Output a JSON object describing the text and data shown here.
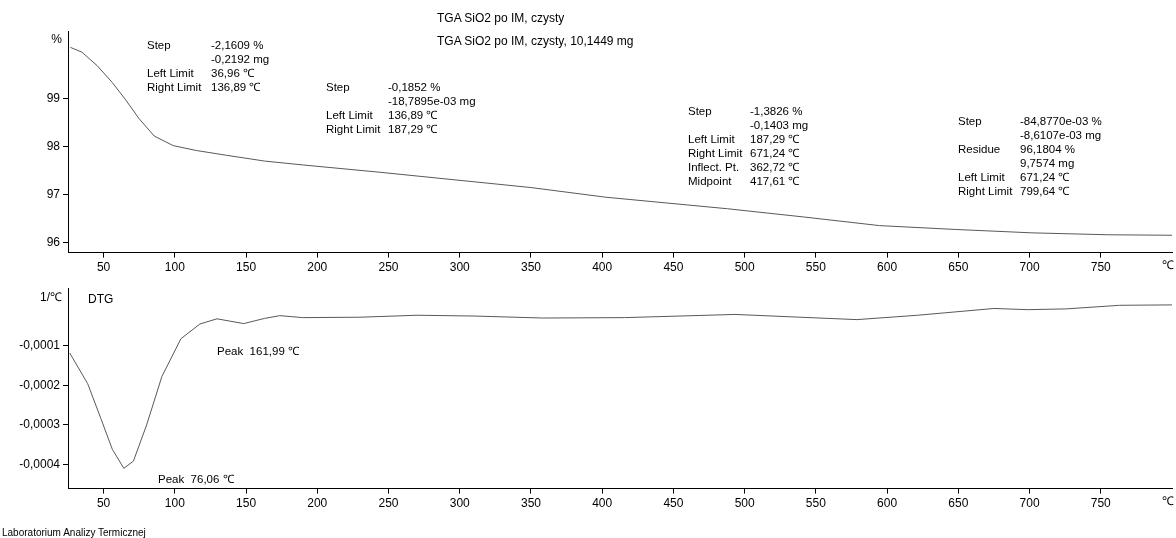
{
  "chart_data": [
    {
      "type": "line",
      "title": "TGA SiO2 po IM, czysty",
      "subtitle": "TGA SiO2 po IM, czysty, 10,1449 mg",
      "xlabel": "℃",
      "ylabel": "%",
      "x": [
        26.7,
        34.8,
        45.5,
        56.1,
        65.5,
        74.9,
        85.5,
        98.9,
        115,
        136.3,
        163,
        189.8,
        243.2,
        296.6,
        350.1,
        402.4,
        488,
        541.3,
        594.7,
        648.2,
        701.6,
        755.2,
        800
      ],
      "series": [
        {
          "color": "#595959",
          "values": [
            100.06,
            99.96,
            99.68,
            99.33,
            98.97,
            98.58,
            98.22,
            98.02,
            97.92,
            97.82,
            97.7,
            97.62,
            97.47,
            97.31,
            97.15,
            96.95,
            96.71,
            96.54,
            96.36,
            96.28,
            96.21,
            96.17,
            96.16
          ]
        }
      ],
      "xlim": [
        25,
        800
      ],
      "xticks": [
        50,
        100,
        150,
        200,
        250,
        300,
        350,
        400,
        450,
        500,
        550,
        600,
        650,
        700,
        750
      ],
      "ylim": [
        95.8,
        100.4
      ],
      "yticks": [
        96,
        97,
        98,
        99
      ],
      "annotations": [
        "Step\t-2,1609 %\n\t-0,2192 mg\nLeft Limit\t36,96 ℃\nRight Limit\t136,89 ℃",
        "Step\t-0,1852 %\n\t-18,7895e-03 mg\nLeft Limit\t136,89 ℃\nRight Limit\t187,29 ℃",
        "Step\t-1,3826 %\n\t-0,1403 mg\nLeft Limit\t187,29 ℃\nRight Limit\t671,24 ℃\nInflect. Pt.\t362,72 ℃\nMidpoint\t417,61 ℃",
        "Step\t-84,8770e-03 %\n\t-8,6107e-03 mg\nResidue\t96,1804 %\n\t9,7574 mg\nLeft Limit\t671,24 ℃\nRight Limit\t799,64 ℃"
      ],
      "grid": false,
      "legend": false
    },
    {
      "type": "line",
      "title": "DTG",
      "xlabel": "℃",
      "ylabel": "1/℃",
      "x": [
        26.2,
        38.8,
        48.1,
        56.1,
        64.2,
        70.9,
        80.2,
        90.9,
        104.3,
        117.6,
        129.6,
        148.3,
        163,
        173.7,
        189.8,
        229.9,
        270,
        310,
        358.2,
        415.8,
        493.2,
        578.8,
        621.5,
        675,
        699,
        725.8,
        763.2,
        800
      ],
      "series": [
        {
          "color": "#595959",
          "values": [
            -0.000119,
            -0.000196,
            -0.000284,
            -0.000361,
            -0.000409,
            -0.000391,
            -0.0003,
            -0.000178,
            -8.3e-05,
            -4.6e-05,
            -3.3e-05,
            -4.5e-05,
            -3.2e-05,
            -2.5e-05,
            -3e-05,
            -2.9e-05,
            -2.4e-05,
            -2.6e-05,
            -3.1e-05,
            -3e-05,
            -2.2e-05,
            -3.5e-05,
            -2.4e-05,
            -7e-06,
            -1e-05,
            -8e-06,
            1e-06,
            2e-06
          ]
        }
      ],
      "xlim": [
        25,
        800
      ],
      "xticks": [
        50,
        100,
        150,
        200,
        250,
        300,
        350,
        400,
        450,
        500,
        550,
        600,
        650,
        700,
        750
      ],
      "ylim": [
        -0.00046,
        4.4e-05
      ],
      "yticks": [
        {
          "value": -0.0001,
          "label": "-0,0001"
        },
        {
          "value": -0.0002,
          "label": "-0,0002"
        },
        {
          "value": -0.0003,
          "label": "-0,0003"
        },
        {
          "value": -0.0004,
          "label": "-0,0004"
        }
      ],
      "annotations": [
        "Peak  161,99 ℃",
        "Peak  76,06 ℃",
        "Laboratorium Analizy Termicznej"
      ],
      "grid": false,
      "legend": false
    }
  ]
}
